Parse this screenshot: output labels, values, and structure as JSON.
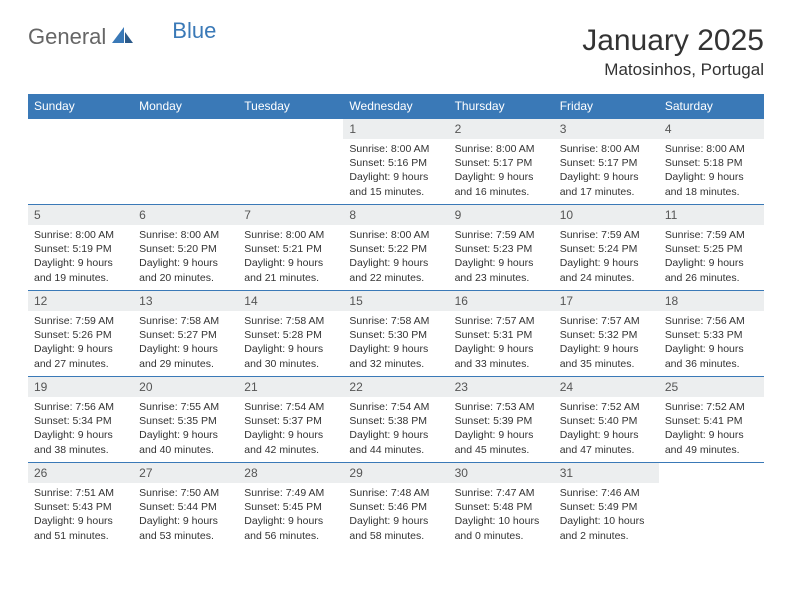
{
  "logo": {
    "general": "General",
    "blue": "Blue",
    "icon_color": "#3a79b7"
  },
  "title": "January 2025",
  "location": "Matosinhos, Portugal",
  "header_bg": "#3a79b7",
  "daynum_bg": "#eceeef",
  "weekdays": [
    "Sunday",
    "Monday",
    "Tuesday",
    "Wednesday",
    "Thursday",
    "Friday",
    "Saturday"
  ],
  "weeks": [
    [
      {
        "n": "",
        "sr": "",
        "ss": "",
        "dl": ""
      },
      {
        "n": "",
        "sr": "",
        "ss": "",
        "dl": ""
      },
      {
        "n": "",
        "sr": "",
        "ss": "",
        "dl": ""
      },
      {
        "n": "1",
        "sr": "8:00 AM",
        "ss": "5:16 PM",
        "dl": "9 hours and 15 minutes."
      },
      {
        "n": "2",
        "sr": "8:00 AM",
        "ss": "5:17 PM",
        "dl": "9 hours and 16 minutes."
      },
      {
        "n": "3",
        "sr": "8:00 AM",
        "ss": "5:17 PM",
        "dl": "9 hours and 17 minutes."
      },
      {
        "n": "4",
        "sr": "8:00 AM",
        "ss": "5:18 PM",
        "dl": "9 hours and 18 minutes."
      }
    ],
    [
      {
        "n": "5",
        "sr": "8:00 AM",
        "ss": "5:19 PM",
        "dl": "9 hours and 19 minutes."
      },
      {
        "n": "6",
        "sr": "8:00 AM",
        "ss": "5:20 PM",
        "dl": "9 hours and 20 minutes."
      },
      {
        "n": "7",
        "sr": "8:00 AM",
        "ss": "5:21 PM",
        "dl": "9 hours and 21 minutes."
      },
      {
        "n": "8",
        "sr": "8:00 AM",
        "ss": "5:22 PM",
        "dl": "9 hours and 22 minutes."
      },
      {
        "n": "9",
        "sr": "7:59 AM",
        "ss": "5:23 PM",
        "dl": "9 hours and 23 minutes."
      },
      {
        "n": "10",
        "sr": "7:59 AM",
        "ss": "5:24 PM",
        "dl": "9 hours and 24 minutes."
      },
      {
        "n": "11",
        "sr": "7:59 AM",
        "ss": "5:25 PM",
        "dl": "9 hours and 26 minutes."
      }
    ],
    [
      {
        "n": "12",
        "sr": "7:59 AM",
        "ss": "5:26 PM",
        "dl": "9 hours and 27 minutes."
      },
      {
        "n": "13",
        "sr": "7:58 AM",
        "ss": "5:27 PM",
        "dl": "9 hours and 29 minutes."
      },
      {
        "n": "14",
        "sr": "7:58 AM",
        "ss": "5:28 PM",
        "dl": "9 hours and 30 minutes."
      },
      {
        "n": "15",
        "sr": "7:58 AM",
        "ss": "5:30 PM",
        "dl": "9 hours and 32 minutes."
      },
      {
        "n": "16",
        "sr": "7:57 AM",
        "ss": "5:31 PM",
        "dl": "9 hours and 33 minutes."
      },
      {
        "n": "17",
        "sr": "7:57 AM",
        "ss": "5:32 PM",
        "dl": "9 hours and 35 minutes."
      },
      {
        "n": "18",
        "sr": "7:56 AM",
        "ss": "5:33 PM",
        "dl": "9 hours and 36 minutes."
      }
    ],
    [
      {
        "n": "19",
        "sr": "7:56 AM",
        "ss": "5:34 PM",
        "dl": "9 hours and 38 minutes."
      },
      {
        "n": "20",
        "sr": "7:55 AM",
        "ss": "5:35 PM",
        "dl": "9 hours and 40 minutes."
      },
      {
        "n": "21",
        "sr": "7:54 AM",
        "ss": "5:37 PM",
        "dl": "9 hours and 42 minutes."
      },
      {
        "n": "22",
        "sr": "7:54 AM",
        "ss": "5:38 PM",
        "dl": "9 hours and 44 minutes."
      },
      {
        "n": "23",
        "sr": "7:53 AM",
        "ss": "5:39 PM",
        "dl": "9 hours and 45 minutes."
      },
      {
        "n": "24",
        "sr": "7:52 AM",
        "ss": "5:40 PM",
        "dl": "9 hours and 47 minutes."
      },
      {
        "n": "25",
        "sr": "7:52 AM",
        "ss": "5:41 PM",
        "dl": "9 hours and 49 minutes."
      }
    ],
    [
      {
        "n": "26",
        "sr": "7:51 AM",
        "ss": "5:43 PM",
        "dl": "9 hours and 51 minutes."
      },
      {
        "n": "27",
        "sr": "7:50 AM",
        "ss": "5:44 PM",
        "dl": "9 hours and 53 minutes."
      },
      {
        "n": "28",
        "sr": "7:49 AM",
        "ss": "5:45 PM",
        "dl": "9 hours and 56 minutes."
      },
      {
        "n": "29",
        "sr": "7:48 AM",
        "ss": "5:46 PM",
        "dl": "9 hours and 58 minutes."
      },
      {
        "n": "30",
        "sr": "7:47 AM",
        "ss": "5:48 PM",
        "dl": "10 hours and 0 minutes."
      },
      {
        "n": "31",
        "sr": "7:46 AM",
        "ss": "5:49 PM",
        "dl": "10 hours and 2 minutes."
      },
      {
        "n": "",
        "sr": "",
        "ss": "",
        "dl": ""
      }
    ]
  ],
  "labels": {
    "sunrise": "Sunrise:",
    "sunset": "Sunset:",
    "daylight": "Daylight:"
  }
}
